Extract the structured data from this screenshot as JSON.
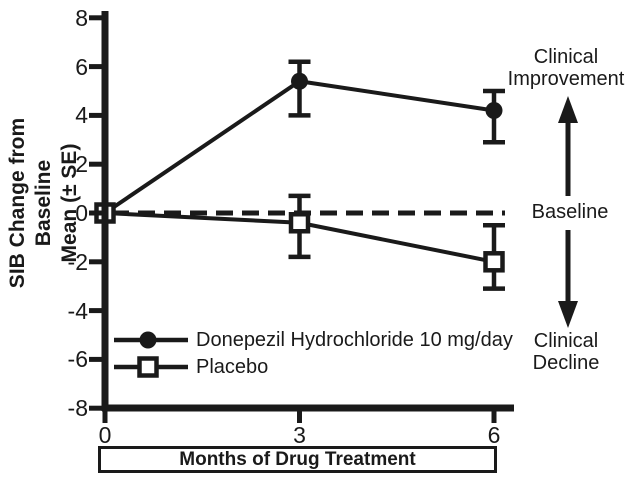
{
  "figure": {
    "background": "#ffffff",
    "ink_color": "#1a1a1a"
  },
  "chart_data": {
    "type": "line",
    "title": "",
    "xlabel": "Months of Drug Treatment",
    "ylabel": "SIB Change from Baseline\nMean (± SE)",
    "xlim": [
      0,
      6
    ],
    "ylim": [
      -8,
      8
    ],
    "grid": "off",
    "legend_position": "inside lower-left",
    "x": [
      0,
      3,
      6
    ],
    "x_ticks": [
      "0",
      "3",
      "6"
    ],
    "y_tick_values": [
      8,
      6,
      4,
      2,
      0,
      -2,
      -4,
      -6,
      -8
    ],
    "y_ticks": [
      "8",
      "6",
      "4",
      "2",
      "0",
      "-2",
      "-4",
      "-6",
      "-8"
    ],
    "baseline_value": 0,
    "baseline_style": "dashed",
    "series": [
      {
        "name": "Donepezil Hydrochloride 10 mg/day",
        "marker": "filled-circle",
        "x": [
          0,
          3,
          6
        ],
        "y": [
          0,
          5.4,
          4.2
        ],
        "err_upper": [
          null,
          6.2,
          5.0
        ],
        "err_lower": [
          null,
          4.0,
          2.9
        ]
      },
      {
        "name": "Placebo",
        "marker": "open-square",
        "x": [
          0,
          3,
          6
        ],
        "y": [
          0,
          -0.4,
          -2.0
        ],
        "err_upper": [
          null,
          0.7,
          -0.5
        ],
        "err_lower": [
          null,
          -1.8,
          -3.1
        ]
      }
    ],
    "annotations": {
      "improvement": "Clinical\nImprovement",
      "baseline": "Baseline",
      "decline": "Clinical\nDecline"
    }
  }
}
